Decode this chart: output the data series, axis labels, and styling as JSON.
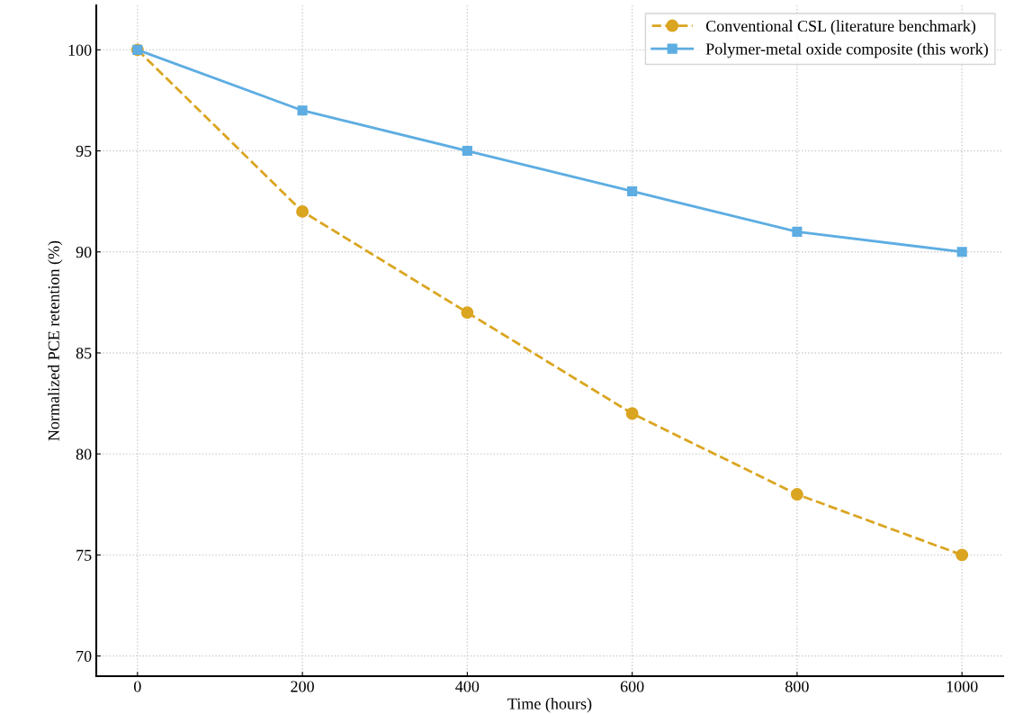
{
  "chart_data": {
    "type": "line",
    "xlabel": "Time (hours)",
    "ylabel": "Normalized PCE retention (%)",
    "x": [
      0,
      200,
      400,
      600,
      800,
      1000
    ],
    "series": [
      {
        "name": "Conventional CSL (literature benchmark)",
        "color": "#daa520",
        "values": [
          100,
          92,
          87,
          82,
          78,
          75
        ],
        "marker": "circle",
        "line_style": "dashed"
      },
      {
        "name": "Polymer-metal oxide composite (this work)",
        "color": "#5dade2",
        "values": [
          100,
          97,
          95,
          93,
          91,
          90
        ],
        "marker": "square",
        "line_style": "solid"
      }
    ],
    "xlim": [
      -50,
      1050
    ],
    "xticks": [
      0,
      200,
      400,
      600,
      800,
      1000
    ],
    "ylim": [
      69,
      102.2
    ],
    "yticks": [
      70,
      75,
      80,
      85,
      90,
      95,
      100
    ],
    "grid": true,
    "legend": "top right"
  }
}
